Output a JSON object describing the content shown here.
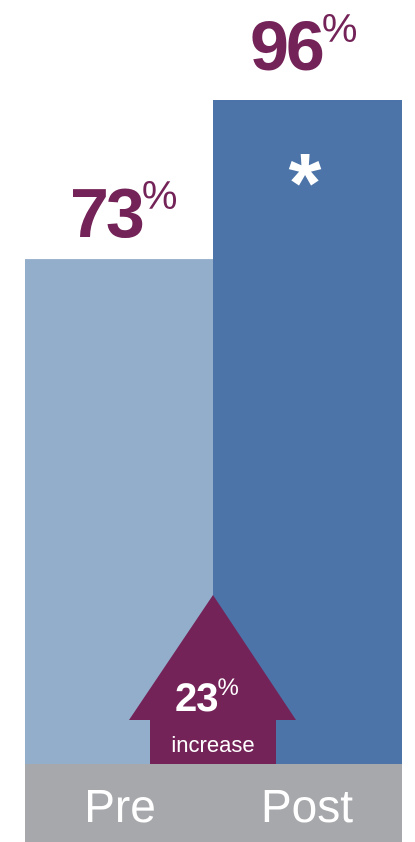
{
  "chart_data": {
    "type": "bar",
    "categories": [
      "Pre",
      "Post"
    ],
    "values": [
      73,
      96
    ],
    "value_labels": [
      "73",
      "96"
    ],
    "unit": "%",
    "significance_marker": "*",
    "annotation": {
      "value": "23",
      "unit": "%",
      "text": "increase"
    },
    "title": "",
    "xlabel": "",
    "ylabel": "",
    "ylim": [
      0,
      100
    ],
    "grid": false,
    "legend": "none"
  },
  "colors": {
    "pre_bar": "#93aecb",
    "post_bar": "#4c74a8",
    "label_text": "#742358",
    "arrow": "#742358",
    "axis_band": "#a7a8ab",
    "axis_text": "#ffffff",
    "marker": "#ffffff"
  }
}
